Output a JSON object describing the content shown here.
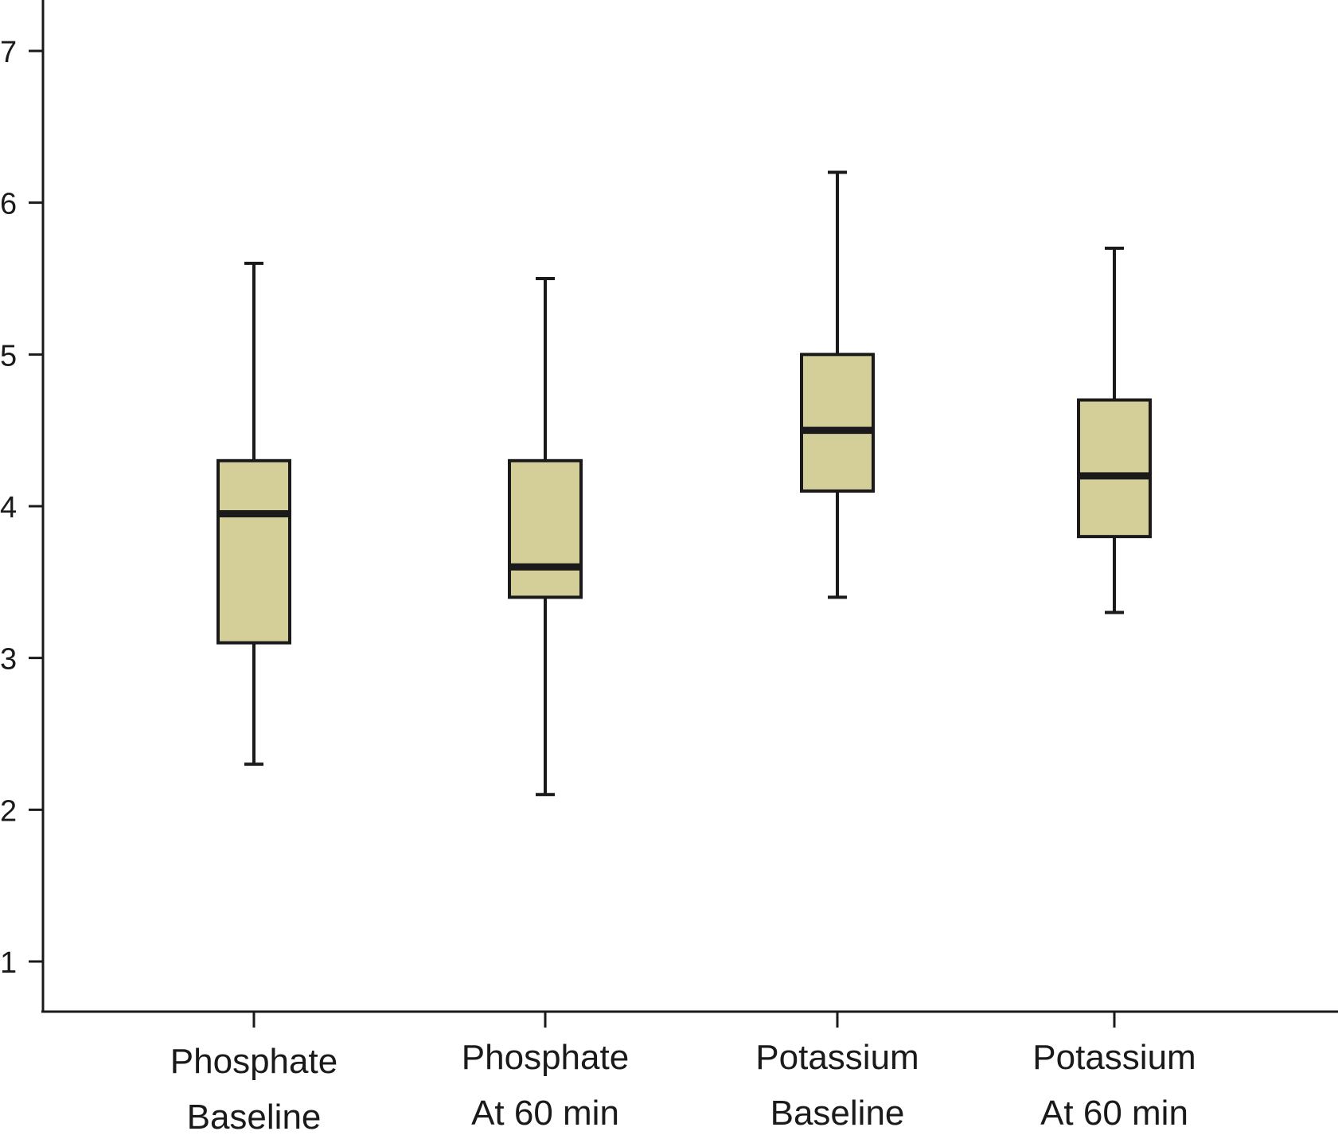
{
  "chart_data": {
    "type": "box",
    "title": "",
    "xlabel": "",
    "ylabel": "",
    "ylim": [
      0.7,
      7.3
    ],
    "yticks": [
      1,
      2,
      3,
      4,
      5,
      6,
      7
    ],
    "grid": false,
    "legend": "none",
    "box_color": "#d4cf99",
    "line_color": "#1a1a1a",
    "categories": [
      {
        "line1": "Phosphate",
        "line2": "Baseline"
      },
      {
        "line1": "Phosphate",
        "line2": "At 60 min"
      },
      {
        "line1": "Potassium",
        "line2": "Baseline"
      },
      {
        "line1": "Potassium",
        "line2": "At 60 min"
      }
    ],
    "boxes": [
      {
        "min": 2.3,
        "q1": 3.1,
        "median": 3.95,
        "q3": 4.3,
        "max": 5.6
      },
      {
        "min": 2.1,
        "q1": 3.4,
        "median": 3.6,
        "q3": 4.3,
        "max": 5.5
      },
      {
        "min": 3.4,
        "q1": 4.1,
        "median": 4.5,
        "q3": 5.0,
        "max": 6.2
      },
      {
        "min": 3.3,
        "q1": 3.8,
        "median": 4.2,
        "q3": 4.7,
        "max": 5.7
      }
    ]
  }
}
